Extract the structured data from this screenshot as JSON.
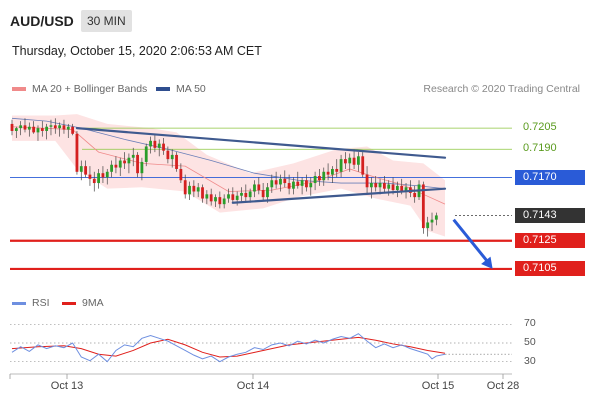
{
  "header": {
    "symbol": "AUD/USD",
    "timeframe": "30 MIN"
  },
  "timestamp": "Thursday, October 15, 2020 2:06:53 AM CET",
  "legend": [
    {
      "label": "MA 20 + Bollinger Bands",
      "color": "#f08a8a",
      "icon": "ma20-bollinger-swatch"
    },
    {
      "label": "MA 50",
      "color": "#2f4e8f",
      "icon": "ma50-swatch"
    }
  ],
  "credit": "Research © 2020 Trading Central",
  "colors": {
    "up": "#2a9d2a",
    "down": "#d42020",
    "level_red": "#e0201c",
    "level_blue": "#2a5bd7",
    "green_line": "#8cc63f",
    "trend": "#3f5a8f",
    "last": "#333333"
  },
  "chart_data": {
    "type": "candlestick",
    "symbol": "AUD/USD",
    "timeframe": "30 MIN",
    "ylim": [
      0.7095,
      0.7225
    ],
    "x_ticks": [
      "Oct 13",
      "Oct 14",
      "Oct 15",
      "Oct 28"
    ],
    "levels": [
      {
        "value": 0.7205,
        "style": "green-line"
      },
      {
        "value": 0.719,
        "style": "green-line"
      },
      {
        "value": 0.717,
        "style": "blue-line-tag"
      },
      {
        "value": 0.7143,
        "style": "last-price-tag"
      },
      {
        "value": 0.7125,
        "style": "red-line-tag"
      },
      {
        "value": 0.7105,
        "style": "red-line-tag"
      }
    ],
    "candles": [
      [
        0.7208,
        0.7211,
        0.72,
        0.7203
      ],
      [
        0.7203,
        0.7206,
        0.7198,
        0.7205
      ],
      [
        0.7205,
        0.721,
        0.72,
        0.7207
      ],
      [
        0.7207,
        0.7212,
        0.7202,
        0.7204
      ],
      [
        0.7204,
        0.7209,
        0.7199,
        0.7206
      ],
      [
        0.7206,
        0.721,
        0.7201,
        0.7202
      ],
      [
        0.7202,
        0.7207,
        0.7196,
        0.7205
      ],
      [
        0.7205,
        0.721,
        0.7199,
        0.7203
      ],
      [
        0.7203,
        0.7208,
        0.7197,
        0.7206
      ],
      [
        0.7206,
        0.7211,
        0.72,
        0.7207
      ],
      [
        0.7207,
        0.7212,
        0.7201,
        0.7205
      ],
      [
        0.7205,
        0.7209,
        0.7199,
        0.7207
      ],
      [
        0.7207,
        0.7211,
        0.7201,
        0.7204
      ],
      [
        0.7204,
        0.7208,
        0.7198,
        0.7206
      ],
      [
        0.7206,
        0.7208,
        0.72,
        0.7201
      ],
      [
        0.7201,
        0.7203,
        0.7172,
        0.7174
      ],
      [
        0.7174,
        0.7182,
        0.7168,
        0.7178
      ],
      [
        0.7178,
        0.7182,
        0.717,
        0.7172
      ],
      [
        0.7172,
        0.7178,
        0.7164,
        0.7169
      ],
      [
        0.7169,
        0.7174,
        0.716,
        0.7166
      ],
      [
        0.7166,
        0.7176,
        0.7162,
        0.7173
      ],
      [
        0.7173,
        0.7178,
        0.7166,
        0.717
      ],
      [
        0.717,
        0.7176,
        0.7165,
        0.7174
      ],
      [
        0.7174,
        0.7182,
        0.717,
        0.7179
      ],
      [
        0.7179,
        0.7185,
        0.7173,
        0.7177
      ],
      [
        0.7177,
        0.7184,
        0.7171,
        0.7182
      ],
      [
        0.7182,
        0.7188,
        0.7176,
        0.718
      ],
      [
        0.718,
        0.7187,
        0.7173,
        0.7184
      ],
      [
        0.7184,
        0.7191,
        0.7178,
        0.7186
      ],
      [
        0.7186,
        0.7188,
        0.717,
        0.7173
      ],
      [
        0.7173,
        0.7184,
        0.7168,
        0.7181
      ],
      [
        0.7181,
        0.7194,
        0.7178,
        0.7192
      ],
      [
        0.7192,
        0.7199,
        0.7187,
        0.7196
      ],
      [
        0.7196,
        0.72,
        0.7188,
        0.7191
      ],
      [
        0.7191,
        0.7197,
        0.7185,
        0.7194
      ],
      [
        0.7194,
        0.7198,
        0.7186,
        0.7189
      ],
      [
        0.7189,
        0.7192,
        0.718,
        0.7183
      ],
      [
        0.7183,
        0.719,
        0.7177,
        0.7186
      ],
      [
        0.7186,
        0.7188,
        0.7174,
        0.7176
      ],
      [
        0.7176,
        0.718,
        0.7166,
        0.7168
      ],
      [
        0.7168,
        0.7172,
        0.7155,
        0.7158
      ],
      [
        0.7158,
        0.7167,
        0.7154,
        0.7164
      ],
      [
        0.7164,
        0.7168,
        0.7156,
        0.716
      ],
      [
        0.716,
        0.7166,
        0.7156,
        0.7163
      ],
      [
        0.7163,
        0.7165,
        0.7152,
        0.7155
      ],
      [
        0.7155,
        0.7161,
        0.7151,
        0.7158
      ],
      [
        0.7158,
        0.7162,
        0.715,
        0.7153
      ],
      [
        0.7153,
        0.7158,
        0.7149,
        0.7156
      ],
      [
        0.7156,
        0.716,
        0.7148,
        0.7151
      ],
      [
        0.7151,
        0.7158,
        0.7148,
        0.7155
      ],
      [
        0.7155,
        0.7162,
        0.7152,
        0.7158
      ],
      [
        0.7158,
        0.7163,
        0.7152,
        0.7154
      ],
      [
        0.7154,
        0.716,
        0.715,
        0.7157
      ],
      [
        0.7157,
        0.7163,
        0.7153,
        0.7159
      ],
      [
        0.7159,
        0.7165,
        0.7153,
        0.7156
      ],
      [
        0.7156,
        0.7162,
        0.7152,
        0.716
      ],
      [
        0.716,
        0.7168,
        0.7156,
        0.7165
      ],
      [
        0.7165,
        0.717,
        0.7158,
        0.7161
      ],
      [
        0.7161,
        0.7166,
        0.7153,
        0.7156
      ],
      [
        0.7156,
        0.7166,
        0.7152,
        0.7163
      ],
      [
        0.7163,
        0.7172,
        0.7159,
        0.7168
      ],
      [
        0.7168,
        0.7174,
        0.7162,
        0.7165
      ],
      [
        0.7165,
        0.7172,
        0.716,
        0.7169
      ],
      [
        0.7169,
        0.7175,
        0.7163,
        0.7166
      ],
      [
        0.7166,
        0.7172,
        0.7158,
        0.7162
      ],
      [
        0.7162,
        0.717,
        0.7158,
        0.7167
      ],
      [
        0.7167,
        0.7174,
        0.7162,
        0.7164
      ],
      [
        0.7164,
        0.717,
        0.7158,
        0.7168
      ],
      [
        0.7168,
        0.7172,
        0.716,
        0.7163
      ],
      [
        0.7163,
        0.717,
        0.7157,
        0.7166
      ],
      [
        0.7166,
        0.7174,
        0.7161,
        0.7171
      ],
      [
        0.7171,
        0.7176,
        0.7164,
        0.7168
      ],
      [
        0.7168,
        0.7177,
        0.7164,
        0.7174
      ],
      [
        0.7174,
        0.718,
        0.7168,
        0.7172
      ],
      [
        0.7172,
        0.7178,
        0.7166,
        0.7176
      ],
      [
        0.7176,
        0.7183,
        0.717,
        0.7174
      ],
      [
        0.7174,
        0.7186,
        0.717,
        0.7183
      ],
      [
        0.7183,
        0.7188,
        0.7176,
        0.718
      ],
      [
        0.718,
        0.7187,
        0.7174,
        0.7184
      ],
      [
        0.7184,
        0.719,
        0.7176,
        0.7179
      ],
      [
        0.7179,
        0.7188,
        0.7174,
        0.7185
      ],
      [
        0.7185,
        0.7188,
        0.717,
        0.7172
      ],
      [
        0.7172,
        0.7178,
        0.7158,
        0.7163
      ],
      [
        0.7163,
        0.717,
        0.7155,
        0.7166
      ],
      [
        0.7166,
        0.7171,
        0.716,
        0.7163
      ],
      [
        0.7163,
        0.7169,
        0.7158,
        0.7166
      ],
      [
        0.7166,
        0.7171,
        0.7159,
        0.7162
      ],
      [
        0.7162,
        0.7168,
        0.7157,
        0.7165
      ],
      [
        0.7165,
        0.717,
        0.7158,
        0.7161
      ],
      [
        0.7161,
        0.7167,
        0.7156,
        0.7164
      ],
      [
        0.7164,
        0.7169,
        0.7158,
        0.716
      ],
      [
        0.716,
        0.7166,
        0.7155,
        0.7163
      ],
      [
        0.7163,
        0.7168,
        0.7156,
        0.7159
      ],
      [
        0.7159,
        0.7164,
        0.7152,
        0.7156
      ],
      [
        0.7156,
        0.7168,
        0.7154,
        0.7165
      ],
      [
        0.7165,
        0.7167,
        0.713,
        0.7134
      ],
      [
        0.7134,
        0.7142,
        0.7128,
        0.7138
      ],
      [
        0.7138,
        0.7145,
        0.7132,
        0.714
      ],
      [
        0.714,
        0.7145,
        0.7136,
        0.7143
      ]
    ],
    "ma20": [
      [
        0,
        0.7206
      ],
      [
        14,
        0.7204
      ],
      [
        20,
        0.7188
      ],
      [
        30,
        0.718
      ],
      [
        40,
        0.7178
      ],
      [
        50,
        0.716
      ],
      [
        60,
        0.7161
      ],
      [
        70,
        0.7167
      ],
      [
        78,
        0.7176
      ],
      [
        84,
        0.717
      ],
      [
        90,
        0.7165
      ],
      [
        95,
        0.7158
      ],
      [
        100,
        0.7151
      ]
    ],
    "bollinger_upper": [
      [
        0,
        0.7214
      ],
      [
        10,
        0.7214
      ],
      [
        15,
        0.7215
      ],
      [
        22,
        0.7208
      ],
      [
        32,
        0.7205
      ],
      [
        38,
        0.7202
      ],
      [
        45,
        0.7186
      ],
      [
        55,
        0.7173
      ],
      [
        65,
        0.718
      ],
      [
        75,
        0.719
      ],
      [
        82,
        0.7192
      ],
      [
        88,
        0.7182
      ],
      [
        95,
        0.718
      ],
      [
        100,
        0.7168
      ]
    ],
    "bollinger_lower": [
      [
        0,
        0.7196
      ],
      [
        10,
        0.7196
      ],
      [
        15,
        0.7176
      ],
      [
        22,
        0.7162
      ],
      [
        30,
        0.7163
      ],
      [
        40,
        0.716
      ],
      [
        48,
        0.7145
      ],
      [
        58,
        0.7148
      ],
      [
        66,
        0.7156
      ],
      [
        76,
        0.7162
      ],
      [
        84,
        0.7155
      ],
      [
        92,
        0.715
      ],
      [
        96,
        0.7132
      ],
      [
        100,
        0.7128
      ]
    ],
    "ma50": [
      [
        0,
        0.7212
      ],
      [
        8,
        0.721
      ],
      [
        16,
        0.7205
      ],
      [
        26,
        0.7197
      ],
      [
        36,
        0.719
      ],
      [
        46,
        0.7182
      ],
      [
        56,
        0.7173
      ],
      [
        66,
        0.7168
      ],
      [
        76,
        0.7166
      ],
      [
        86,
        0.7166
      ],
      [
        94,
        0.7164
      ],
      [
        100,
        0.7162
      ]
    ],
    "trendlines": [
      {
        "from": [
          15,
          0.7205
        ],
        "to": [
          100,
          0.7184
        ]
      },
      {
        "from": [
          51,
          0.7152
        ],
        "to": [
          100,
          0.7162
        ]
      }
    ],
    "arrow": {
      "from": [
        102,
        0.714
      ],
      "to": [
        111,
        0.7105
      ]
    },
    "rsi": {
      "legend": [
        {
          "label": "RSI",
          "color": "#6e8fe0"
        },
        {
          "label": "9MA",
          "color": "#e0201c"
        }
      ],
      "ylim": [
        20,
        80
      ],
      "levels": [
        70,
        50,
        30
      ],
      "last": 38,
      "rsi": [
        [
          0,
          40
        ],
        [
          2,
          46
        ],
        [
          4,
          41
        ],
        [
          6,
          48
        ],
        [
          8,
          44
        ],
        [
          10,
          47
        ],
        [
          12,
          45
        ],
        [
          14,
          50
        ],
        [
          16,
          35
        ],
        [
          18,
          31
        ],
        [
          20,
          38
        ],
        [
          22,
          30
        ],
        [
          24,
          42
        ],
        [
          26,
          48
        ],
        [
          28,
          46
        ],
        [
          30,
          55
        ],
        [
          32,
          58
        ],
        [
          34,
          55
        ],
        [
          36,
          52
        ],
        [
          38,
          47
        ],
        [
          40,
          42
        ],
        [
          42,
          37
        ],
        [
          44,
          33
        ],
        [
          46,
          36
        ],
        [
          48,
          30
        ],
        [
          50,
          35
        ],
        [
          52,
          38
        ],
        [
          54,
          40
        ],
        [
          56,
          45
        ],
        [
          58,
          43
        ],
        [
          60,
          48
        ],
        [
          62,
          50
        ],
        [
          64,
          47
        ],
        [
          66,
          52
        ],
        [
          68,
          49
        ],
        [
          70,
          53
        ],
        [
          72,
          50
        ],
        [
          74,
          54
        ],
        [
          76,
          57
        ],
        [
          78,
          55
        ],
        [
          80,
          60
        ],
        [
          82,
          52
        ],
        [
          84,
          45
        ],
        [
          86,
          49
        ],
        [
          88,
          45
        ],
        [
          90,
          48
        ],
        [
          92,
          44
        ],
        [
          94,
          41
        ],
        [
          96,
          38
        ],
        [
          97,
          33
        ],
        [
          98,
          36
        ],
        [
          100,
          38
        ]
      ],
      "ma9": [
        [
          0,
          44
        ],
        [
          6,
          46
        ],
        [
          12,
          47
        ],
        [
          16,
          44
        ],
        [
          20,
          38
        ],
        [
          24,
          36
        ],
        [
          28,
          42
        ],
        [
          32,
          50
        ],
        [
          36,
          54
        ],
        [
          40,
          48
        ],
        [
          44,
          40
        ],
        [
          48,
          35
        ],
        [
          52,
          36
        ],
        [
          56,
          40
        ],
        [
          60,
          44
        ],
        [
          64,
          48
        ],
        [
          68,
          50
        ],
        [
          72,
          52
        ],
        [
          76,
          54
        ],
        [
          80,
          56
        ],
        [
          84,
          53
        ],
        [
          88,
          49
        ],
        [
          92,
          46
        ],
        [
          96,
          42
        ],
        [
          100,
          39
        ]
      ]
    }
  }
}
